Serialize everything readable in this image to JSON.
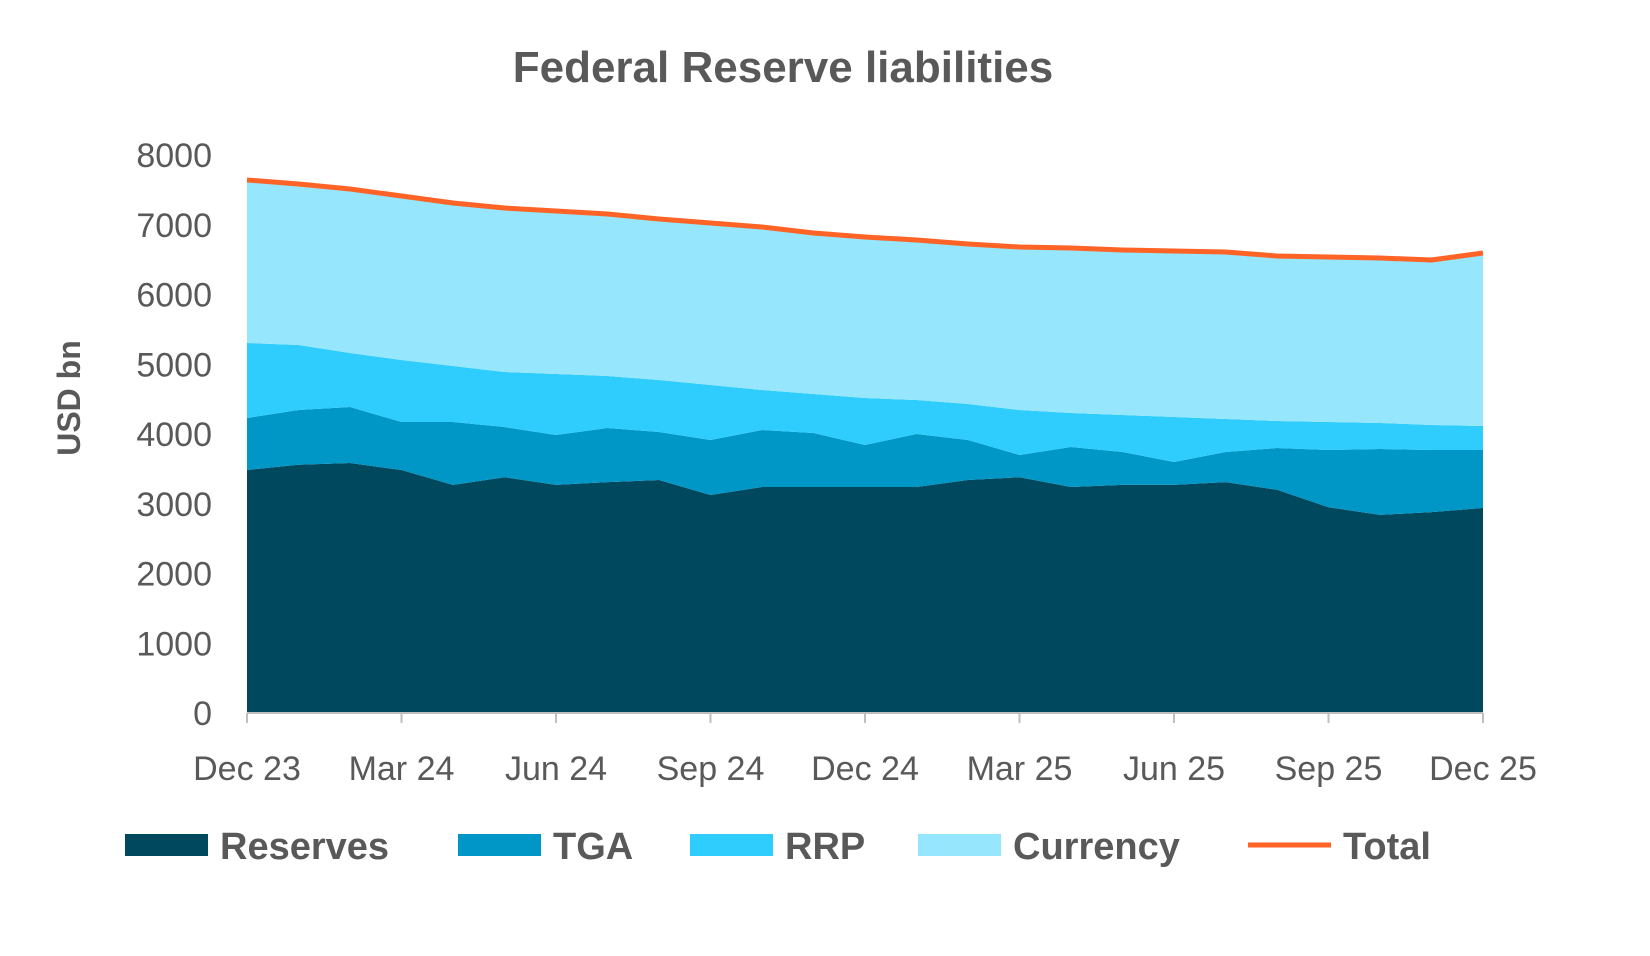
{
  "chart_data": {
    "type": "area",
    "stacked": true,
    "title": "Federal Reserve liabilities",
    "xlabel": "",
    "ylabel": "USD bn",
    "ylim": [
      0,
      8000
    ],
    "yticks": [
      0,
      1000,
      2000,
      3000,
      4000,
      5000,
      6000,
      7000,
      8000
    ],
    "xtick_labels": [
      "Dec 23",
      "Mar 24",
      "Jun 24",
      "Sep 24",
      "Dec 24",
      "Mar 25",
      "Jun 25",
      "Sep 25",
      "Dec 25"
    ],
    "grid": false,
    "legend": "bottom",
    "x": [
      "Dec 23",
      "Jan 24",
      "Feb 24",
      "Mar 24",
      "Apr 24",
      "May 24",
      "Jun 24",
      "Jul 24",
      "Aug 24",
      "Sep 24",
      "Oct 24",
      "Nov 24",
      "Dec 24",
      "Jan 25",
      "Feb 25",
      "Mar 25",
      "Apr 25",
      "May 25",
      "Jun 25",
      "Jul 25",
      "Aug 25",
      "Sep 25",
      "Oct 25",
      "Nov 25",
      "Dec 25"
    ],
    "series": [
      {
        "name": "Reserves",
        "color": "#00485E",
        "values": [
          3484,
          3560,
          3584,
          3484,
          3270,
          3380,
          3270,
          3310,
          3340,
          3125,
          3240,
          3240,
          3240,
          3240,
          3340,
          3380,
          3240,
          3270,
          3270,
          3310,
          3200,
          2950,
          2840,
          2880,
          2940
        ]
      },
      {
        "name": "TGA",
        "color": "#0097C7",
        "values": [
          746,
          784,
          803,
          688,
          902,
          720,
          716,
          776,
          689,
          789,
          817,
          774,
          602,
          760,
          574,
          319,
          574,
          472,
          329,
          432,
          599,
          821,
          945,
          891,
          831
        ]
      },
      {
        "name": "RRP",
        "color": "#2ECDFD",
        "values": [
          1075,
          932,
          774,
          889,
          803,
          789,
          874,
          746,
          745,
          789,
          574,
          559,
          674,
          487,
          516,
          645,
          487,
          530,
          645,
          473,
          387,
          401,
          373,
          358,
          344
        ]
      },
      {
        "name": "Currency",
        "color": "#96E6FD",
        "values": [
          2337,
          2308,
          2352,
          2351,
          2337,
          2351,
          2337,
          2322,
          2308,
          2322,
          2337,
          2309,
          2308,
          2294,
          2294,
          2337,
          2366,
          2366,
          2380,
          2394,
          2366,
          2366,
          2365,
          2366,
          2480
        ]
      },
      {
        "name": "Total",
        "type": "line",
        "color": "#FF6325",
        "values": [
          7642,
          7584,
          7513,
          7412,
          7312,
          7240,
          7197,
          7154,
          7082,
          7025,
          6968,
          6882,
          6824,
          6781,
          6724,
          6681,
          6667,
          6638,
          6624,
          6609,
          6552,
          6538,
          6523,
          6495,
          6595
        ]
      }
    ]
  }
}
